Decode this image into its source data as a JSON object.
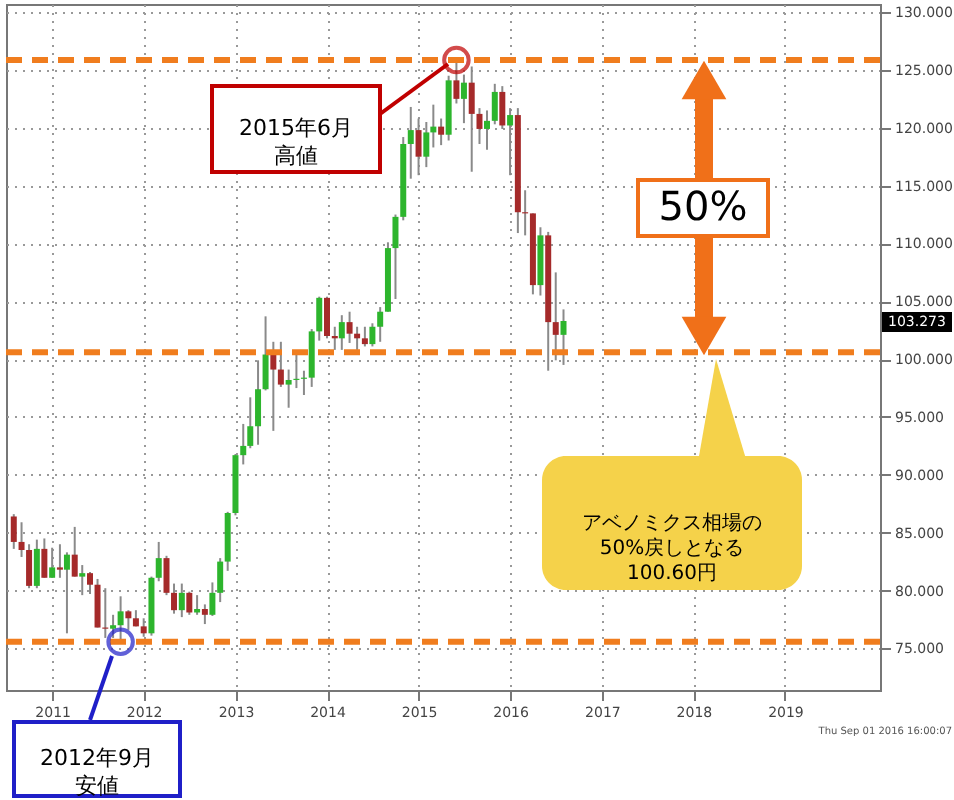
{
  "chart_data": {
    "type": "candlestick",
    "x": [
      "2010-08",
      "2010-09",
      "2010-10",
      "2010-11",
      "2010-12",
      "2011-01",
      "2011-02",
      "2011-03",
      "2011-04",
      "2011-05",
      "2011-06",
      "2011-07",
      "2011-08",
      "2011-09",
      "2011-10",
      "2011-11",
      "2011-12",
      "2012-01",
      "2012-02",
      "2012-03",
      "2012-04",
      "2012-05",
      "2012-06",
      "2012-07",
      "2012-08",
      "2012-09",
      "2012-10",
      "2012-11",
      "2012-12",
      "2013-01",
      "2013-02",
      "2013-03",
      "2013-04",
      "2013-05",
      "2013-06",
      "2013-07",
      "2013-08",
      "2013-09",
      "2013-10",
      "2013-11",
      "2013-12",
      "2014-01",
      "2014-02",
      "2014-03",
      "2014-04",
      "2014-05",
      "2014-06",
      "2014-07",
      "2014-08",
      "2014-09",
      "2014-10",
      "2014-11",
      "2014-12",
      "2015-01",
      "2015-02",
      "2015-03",
      "2015-04",
      "2015-05",
      "2015-06",
      "2015-07",
      "2015-08",
      "2015-09",
      "2015-10",
      "2015-11",
      "2015-12",
      "2016-01",
      "2016-02",
      "2016-03",
      "2016-04",
      "2016-05",
      "2016-06",
      "2016-07",
      "2016-08"
    ],
    "ohlc": [
      [
        86.4,
        86.6,
        83.6,
        84.2
      ],
      [
        84.2,
        85.9,
        82.9,
        83.5
      ],
      [
        83.5,
        84.0,
        80.2,
        80.4
      ],
      [
        80.4,
        84.4,
        80.2,
        83.6
      ],
      [
        83.6,
        84.5,
        81.1,
        81.1
      ],
      [
        81.1,
        83.7,
        81.1,
        82.0
      ],
      [
        82.0,
        84.0,
        81.1,
        81.8
      ],
      [
        81.8,
        83.3,
        76.3,
        83.1
      ],
      [
        83.1,
        85.5,
        81.2,
        81.2
      ],
      [
        81.2,
        82.2,
        79.6,
        81.5
      ],
      [
        81.5,
        81.6,
        79.7,
        80.5
      ],
      [
        80.5,
        81.0,
        76.8,
        76.8
      ],
      [
        76.8,
        80.2,
        75.9,
        76.7
      ],
      [
        76.7,
        77.9,
        75.9,
        77.0
      ],
      [
        77.0,
        79.5,
        75.57,
        78.2
      ],
      [
        78.2,
        78.3,
        76.6,
        77.6
      ],
      [
        77.6,
        78.3,
        76.9,
        76.9
      ],
      [
        76.9,
        77.6,
        76.0,
        76.3
      ],
      [
        76.3,
        81.2,
        76.1,
        81.1
      ],
      [
        81.1,
        84.2,
        80.8,
        82.8
      ],
      [
        82.8,
        83.0,
        79.6,
        79.8
      ],
      [
        79.8,
        80.6,
        78.0,
        78.3
      ],
      [
        78.3,
        80.6,
        77.7,
        79.8
      ],
      [
        79.8,
        79.9,
        77.9,
        78.1
      ],
      [
        78.1,
        79.6,
        77.9,
        78.4
      ],
      [
        78.4,
        78.8,
        77.1,
        77.9
      ],
      [
        77.9,
        80.7,
        77.8,
        79.8
      ],
      [
        79.8,
        82.8,
        79.0,
        82.5
      ],
      [
        82.5,
        86.8,
        81.7,
        86.7
      ],
      [
        86.7,
        91.8,
        86.5,
        91.7
      ],
      [
        91.7,
        94.4,
        90.9,
        92.5
      ],
      [
        92.5,
        96.7,
        92.3,
        94.2
      ],
      [
        94.2,
        99.9,
        92.6,
        97.4
      ],
      [
        97.4,
        103.7,
        97.3,
        100.4
      ],
      [
        100.4,
        101.5,
        93.8,
        99.1
      ],
      [
        99.1,
        101.5,
        97.6,
        97.8
      ],
      [
        97.8,
        99.1,
        95.8,
        98.2
      ],
      [
        98.2,
        100.6,
        97.5,
        98.3
      ],
      [
        98.3,
        99.0,
        96.9,
        98.4
      ],
      [
        98.4,
        102.6,
        97.6,
        102.4
      ],
      [
        102.4,
        105.4,
        101.6,
        105.3
      ],
      [
        105.3,
        105.4,
        101.8,
        102.0
      ],
      [
        102.0,
        102.8,
        100.8,
        101.8
      ],
      [
        101.8,
        103.8,
        100.8,
        103.2
      ],
      [
        103.2,
        104.1,
        101.4,
        102.2
      ],
      [
        102.2,
        102.8,
        100.8,
        101.8
      ],
      [
        101.8,
        102.8,
        101.1,
        101.3
      ],
      [
        101.3,
        103.1,
        101.1,
        102.8
      ],
      [
        102.8,
        104.5,
        101.5,
        104.1
      ],
      [
        104.1,
        110.1,
        104.1,
        109.6
      ],
      [
        109.6,
        112.5,
        105.2,
        112.3
      ],
      [
        112.3,
        119.2,
        112.0,
        118.6
      ],
      [
        118.6,
        121.8,
        115.6,
        119.8
      ],
      [
        119.8,
        120.8,
        115.9,
        117.5
      ],
      [
        117.5,
        120.5,
        116.6,
        119.6
      ],
      [
        119.6,
        122.0,
        118.3,
        120.1
      ],
      [
        120.1,
        120.8,
        118.5,
        119.4
      ],
      [
        119.4,
        124.5,
        118.9,
        124.1
      ],
      [
        124.1,
        125.86,
        122.1,
        122.5
      ],
      [
        122.5,
        124.6,
        120.4,
        123.9
      ],
      [
        123.9,
        125.3,
        116.2,
        121.2
      ],
      [
        121.2,
        121.7,
        118.6,
        119.9
      ],
      [
        119.9,
        121.5,
        118.1,
        120.6
      ],
      [
        120.6,
        123.8,
        120.3,
        123.1
      ],
      [
        123.1,
        123.6,
        119.9,
        120.2
      ],
      [
        120.2,
        121.7,
        115.9,
        121.1
      ],
      [
        121.1,
        121.7,
        110.9,
        112.7
      ],
      [
        112.7,
        114.6,
        110.7,
        112.6
      ],
      [
        112.6,
        112.6,
        105.6,
        106.4
      ],
      [
        106.4,
        111.4,
        105.5,
        110.7
      ],
      [
        110.7,
        111.0,
        99.0,
        103.2
      ],
      [
        103.2,
        107.5,
        99.9,
        102.1
      ],
      [
        102.1,
        104.3,
        99.5,
        103.3
      ]
    ],
    "colors": [
      "#a52a2a",
      "#a52a2a",
      "#a52a2a",
      "#2db52d",
      "#a52a2a",
      "#2db52d",
      "#a52a2a",
      "#2db52d",
      "#a52a2a",
      "#2db52d",
      "#a52a2a",
      "#a52a2a",
      "#a52a2a",
      "#2db52d",
      "#2db52d",
      "#a52a2a",
      "#a52a2a",
      "#a52a2a",
      "#2db52d",
      "#2db52d",
      "#a52a2a",
      "#a52a2a",
      "#2db52d",
      "#a52a2a",
      "#2db52d",
      "#a52a2a",
      "#2db52d",
      "#2db52d",
      "#2db52d",
      "#2db52d",
      "#2db52d",
      "#2db52d",
      "#2db52d",
      "#2db52d",
      "#a52a2a",
      "#a52a2a",
      "#2db52d",
      "#2db52d",
      "#2db52d",
      "#2db52d",
      "#2db52d",
      "#a52a2a",
      "#a52a2a",
      "#2db52d",
      "#a52a2a",
      "#a52a2a",
      "#a52a2a",
      "#2db52d",
      "#2db52d",
      "#2db52d",
      "#2db52d",
      "#2db52d",
      "#2db52d",
      "#a52a2a",
      "#2db52d",
      "#2db52d",
      "#a52a2a",
      "#2db52d",
      "#a52a2a",
      "#2db52d",
      "#a52a2a",
      "#a52a2a",
      "#2db52d",
      "#2db52d",
      "#a52a2a",
      "#2db52d",
      "#a52a2a",
      "#a52a2a",
      "#a52a2a",
      "#2db52d",
      "#a52a2a",
      "#a52a2a",
      "#2db52d"
    ],
    "xlim": [
      "2010-07-01",
      "2020-01-15"
    ],
    "xticks": [
      {
        "value": "2011-01-01",
        "label": "2011"
      },
      {
        "value": "2012-01-01",
        "label": "2012"
      },
      {
        "value": "2013-01-01",
        "label": "2013"
      },
      {
        "value": "2014-01-01",
        "label": "2014"
      },
      {
        "value": "2015-01-01",
        "label": "2015"
      },
      {
        "value": "2016-01-01",
        "label": "2016"
      },
      {
        "value": "2017-01-01",
        "label": "2017"
      },
      {
        "value": "2018-01-01",
        "label": "2018"
      },
      {
        "value": "2019-01-01",
        "label": "2019"
      }
    ],
    "ylim": [
      71.4,
      130.7
    ],
    "yticks": [
      {
        "value": 75,
        "label": "75.000"
      },
      {
        "value": 80,
        "label": "80.000"
      },
      {
        "value": 85,
        "label": "85.000"
      },
      {
        "value": 90,
        "label": "90.000"
      },
      {
        "value": 95,
        "label": "95.000"
      },
      {
        "value": 100,
        "label": "100.000"
      },
      {
        "value": 105,
        "label": "105.000"
      },
      {
        "value": 110,
        "label": "110.000"
      },
      {
        "value": 115,
        "label": "115.000"
      },
      {
        "value": 120,
        "label": "120.000"
      },
      {
        "value": 125,
        "label": "125.000"
      },
      {
        "value": 130,
        "label": "130.000"
      }
    ],
    "grid": true,
    "ref_lines": [
      {
        "axis": "y",
        "value": 125.86,
        "color": "#f07d1e",
        "line_style": "dashed"
      },
      {
        "axis": "y",
        "value": 100.6,
        "color": "#f07d1e",
        "line_style": "dashed"
      },
      {
        "axis": "y",
        "value": 75.57,
        "color": "#f07d1e",
        "line_style": "dashed"
      }
    ],
    "annotations": [
      {
        "text": "2015年6月高値",
        "x": "2015-06",
        "y": 125.86
      },
      {
        "text": "2012年9月安値",
        "x": "2011-10",
        "y": 75.57
      },
      "50%",
      "アベノミクス相場の50%戻しとなる100.60円",
      "103.273",
      "Thu Sep 01 2016 16:00:07"
    ]
  }
}
